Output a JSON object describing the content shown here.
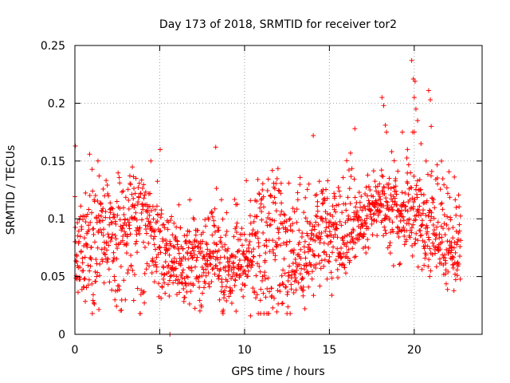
{
  "chart_data": {
    "type": "scatter",
    "title": "Day 173 of 2018, SRMTID for receiver tor2",
    "xlabel": "GPS time / hours",
    "ylabel": "SRMTID / TECUs",
    "xlim": [
      0,
      24
    ],
    "ylim": [
      0,
      0.25
    ],
    "xticks": [
      0,
      5,
      10,
      15,
      20
    ],
    "xtick_labels": [
      "0",
      "5",
      "10",
      "15",
      "20"
    ],
    "yticks": [
      0,
      0.05,
      0.1,
      0.15,
      0.2,
      0.25
    ],
    "ytick_labels": [
      "0",
      "0.05",
      "0.1",
      "0.15",
      "0.2",
      "0.25"
    ],
    "grid": true,
    "marker": "plus",
    "color": "#ff0000",
    "series": [
      {
        "name": "SRMTID",
        "x_range": [
          0,
          22.75
        ],
        "step_hours": 0.00833,
        "baseline": [
          [
            0.0,
            0.08
          ],
          [
            1.0,
            0.075
          ],
          [
            2.0,
            0.08
          ],
          [
            3.0,
            0.075
          ],
          [
            4.0,
            0.09
          ],
          [
            5.0,
            0.085
          ],
          [
            6.0,
            0.07
          ],
          [
            7.0,
            0.075
          ],
          [
            8.0,
            0.08
          ],
          [
            9.0,
            0.07
          ],
          [
            10.0,
            0.065
          ],
          [
            11.0,
            0.08
          ],
          [
            12.0,
            0.075
          ],
          [
            13.0,
            0.07
          ],
          [
            14.0,
            0.065
          ],
          [
            15.0,
            0.08
          ],
          [
            16.0,
            0.085
          ],
          [
            17.0,
            0.095
          ],
          [
            18.0,
            0.105
          ],
          [
            19.0,
            0.09
          ],
          [
            20.0,
            0.11
          ],
          [
            21.0,
            0.1
          ],
          [
            22.0,
            0.085
          ],
          [
            22.75,
            0.07
          ]
        ],
        "spread": 0.025,
        "highlights": [
          [
            0.03,
            0.163
          ],
          [
            8.3,
            0.162
          ],
          [
            14.05,
            0.172
          ],
          [
            16.5,
            0.178
          ],
          [
            18.1,
            0.205
          ],
          [
            18.2,
            0.198
          ],
          [
            18.3,
            0.181
          ],
          [
            19.3,
            0.175
          ],
          [
            19.85,
            0.237
          ],
          [
            19.95,
            0.221
          ],
          [
            20.05,
            0.219
          ],
          [
            20.0,
            0.205
          ],
          [
            20.1,
            0.195
          ],
          [
            20.2,
            0.185
          ],
          [
            20.85,
            0.211
          ],
          [
            20.95,
            0.203
          ],
          [
            21.0,
            0.18
          ],
          [
            19.6,
            0.16
          ],
          [
            20.4,
            0.165
          ],
          [
            20.7,
            0.15
          ],
          [
            9.5,
            0.02
          ],
          [
            10.35,
            0.016
          ],
          [
            5.6,
            0.0
          ]
        ]
      }
    ]
  }
}
